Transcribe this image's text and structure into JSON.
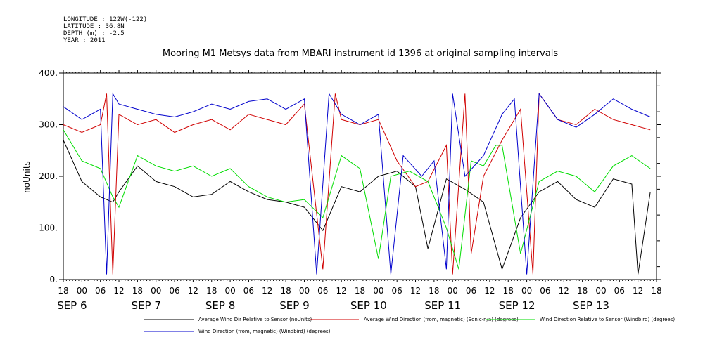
{
  "header": {
    "longitude": "LONGITUDE : 122W(-122)",
    "latitude": "LATITUDE : 36.8N",
    "depth": "DEPTH (m) : -2.5",
    "year": "YEAR : 2011"
  },
  "chart_data": {
    "type": "line",
    "title": "Mooring M1 Metsys data from MBARI instrument id 1396 at original sampling intervals",
    "ylabel": "noUnits",
    "ylim": [
      0,
      400
    ],
    "yticks": [
      0,
      100,
      200,
      300,
      400
    ],
    "ytick_labels": [
      "0.",
      "100.",
      "200.",
      "300.",
      "400."
    ],
    "xlim_hours_note": "x positions are hours since SEP 6 18:00",
    "x_tick_labels": [
      "18",
      "00",
      "06",
      "12",
      "18",
      "00",
      "06",
      "12",
      "18",
      "00",
      "06",
      "12",
      "18",
      "00",
      "06",
      "12",
      "18",
      "00",
      "06",
      "12",
      "18",
      "00",
      "06",
      "12",
      "18",
      "00",
      "06",
      "12",
      "18",
      "00",
      "06",
      "12",
      "18"
    ],
    "date_labels": [
      "SEP 6",
      "SEP 7",
      "SEP 8",
      "SEP 9",
      "SEP 10",
      "SEP 11",
      "SEP 12",
      "SEP 13"
    ],
    "grid": false,
    "legend_position": "bottom",
    "series": [
      {
        "name": "Average Wind Dir Relative to Sensor (noUnits)",
        "color": "#000000",
        "points": [
          [
            0,
            270
          ],
          [
            6,
            190
          ],
          [
            12,
            160
          ],
          [
            16,
            150
          ],
          [
            18,
            170
          ],
          [
            24,
            220
          ],
          [
            30,
            190
          ],
          [
            36,
            180
          ],
          [
            42,
            160
          ],
          [
            48,
            165
          ],
          [
            54,
            190
          ],
          [
            60,
            170
          ],
          [
            66,
            155
          ],
          [
            72,
            150
          ],
          [
            78,
            140
          ],
          [
            84,
            95
          ],
          [
            90,
            180
          ],
          [
            96,
            170
          ],
          [
            102,
            200
          ],
          [
            108,
            210
          ],
          [
            114,
            180
          ],
          [
            118,
            60
          ],
          [
            124,
            195
          ],
          [
            130,
            175
          ],
          [
            136,
            150
          ],
          [
            142,
            20
          ],
          [
            148,
            120
          ],
          [
            154,
            170
          ],
          [
            160,
            190
          ],
          [
            166,
            155
          ],
          [
            172,
            140
          ],
          [
            178,
            195
          ],
          [
            184,
            185
          ],
          [
            186,
            10
          ],
          [
            190,
            170
          ]
        ]
      },
      {
        "name": "Average Wind Direction (from, magnetic) (Sonic-n/a) (degrees)",
        "color": "#d00000",
        "points": [
          [
            0,
            300
          ],
          [
            6,
            285
          ],
          [
            12,
            300
          ],
          [
            14,
            360
          ],
          [
            16,
            10
          ],
          [
            18,
            320
          ],
          [
            24,
            300
          ],
          [
            30,
            310
          ],
          [
            36,
            285
          ],
          [
            42,
            300
          ],
          [
            48,
            310
          ],
          [
            54,
            290
          ],
          [
            60,
            320
          ],
          [
            66,
            310
          ],
          [
            72,
            300
          ],
          [
            78,
            340
          ],
          [
            84,
            20
          ],
          [
            88,
            360
          ],
          [
            90,
            310
          ],
          [
            96,
            300
          ],
          [
            102,
            310
          ],
          [
            108,
            230
          ],
          [
            114,
            180
          ],
          [
            118,
            190
          ],
          [
            124,
            260
          ],
          [
            126,
            10
          ],
          [
            130,
            360
          ],
          [
            132,
            50
          ],
          [
            136,
            200
          ],
          [
            142,
            270
          ],
          [
            148,
            330
          ],
          [
            152,
            10
          ],
          [
            154,
            360
          ],
          [
            160,
            310
          ],
          [
            166,
            300
          ],
          [
            172,
            330
          ],
          [
            178,
            310
          ],
          [
            184,
            300
          ],
          [
            190,
            290
          ]
        ]
      },
      {
        "name": "Wind Direction Relative to Sensor (Windbird) (degrees)",
        "color": "#00dd00",
        "points": [
          [
            0,
            290
          ],
          [
            6,
            230
          ],
          [
            12,
            215
          ],
          [
            16,
            160
          ],
          [
            18,
            140
          ],
          [
            24,
            240
          ],
          [
            30,
            220
          ],
          [
            36,
            210
          ],
          [
            42,
            220
          ],
          [
            48,
            200
          ],
          [
            54,
            215
          ],
          [
            60,
            180
          ],
          [
            66,
            160
          ],
          [
            72,
            150
          ],
          [
            78,
            155
          ],
          [
            84,
            120
          ],
          [
            90,
            240
          ],
          [
            96,
            215
          ],
          [
            102,
            40
          ],
          [
            106,
            200
          ],
          [
            112,
            210
          ],
          [
            118,
            190
          ],
          [
            124,
            100
          ],
          [
            128,
            20
          ],
          [
            132,
            230
          ],
          [
            136,
            220
          ],
          [
            140,
            260
          ],
          [
            142,
            260
          ],
          [
            148,
            50
          ],
          [
            154,
            190
          ],
          [
            160,
            210
          ],
          [
            166,
            200
          ],
          [
            172,
            170
          ],
          [
            178,
            220
          ],
          [
            184,
            240
          ],
          [
            190,
            215
          ]
        ]
      },
      {
        "name": "Wind Direction (from, magnetic) (Windbird) (degrees)",
        "color": "#0000cc",
        "points": [
          [
            0,
            335
          ],
          [
            6,
            310
          ],
          [
            12,
            330
          ],
          [
            14,
            10
          ],
          [
            16,
            360
          ],
          [
            18,
            340
          ],
          [
            24,
            330
          ],
          [
            30,
            320
          ],
          [
            36,
            315
          ],
          [
            42,
            325
          ],
          [
            48,
            340
          ],
          [
            54,
            330
          ],
          [
            60,
            345
          ],
          [
            66,
            350
          ],
          [
            72,
            330
          ],
          [
            78,
            350
          ],
          [
            82,
            10
          ],
          [
            86,
            360
          ],
          [
            90,
            320
          ],
          [
            96,
            300
          ],
          [
            102,
            320
          ],
          [
            106,
            10
          ],
          [
            110,
            240
          ],
          [
            116,
            200
          ],
          [
            120,
            230
          ],
          [
            124,
            20
          ],
          [
            126,
            360
          ],
          [
            130,
            200
          ],
          [
            136,
            240
          ],
          [
            142,
            320
          ],
          [
            146,
            350
          ],
          [
            150,
            10
          ],
          [
            154,
            360
          ],
          [
            160,
            310
          ],
          [
            166,
            295
          ],
          [
            172,
            320
          ],
          [
            178,
            350
          ],
          [
            184,
            330
          ],
          [
            190,
            315
          ]
        ]
      }
    ]
  }
}
